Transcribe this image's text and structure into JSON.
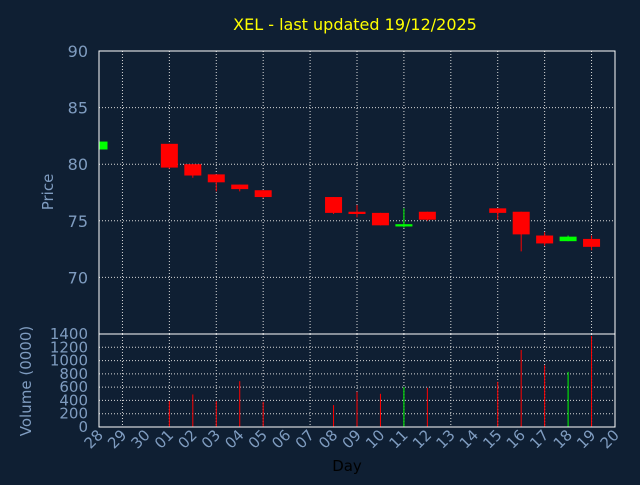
{
  "colors": {
    "background": "#0f1f33",
    "plot_bg": "#0f1f33",
    "frame": "#ffffff",
    "grid": "#d8d8d8",
    "title": "#ffff00",
    "axis_text": "#7f9cc0",
    "xlabel_text": "#000000",
    "up": "#00ff00",
    "down": "#ff0000"
  },
  "chart_data": [
    {
      "type": "candlestick",
      "title": "XEL - last updated 19/12/2025",
      "ylabel": "Price",
      "ylim": [
        65,
        90
      ],
      "yticks": [
        70,
        75,
        80,
        85,
        90
      ],
      "grid": true,
      "x_tick_labels": [
        "28",
        "29",
        "30",
        "01",
        "02",
        "03",
        "04",
        "05",
        "06",
        "07",
        "08",
        "09",
        "10",
        "11",
        "12",
        "13",
        "14",
        "15",
        "16",
        "17",
        "18",
        "19",
        "20"
      ],
      "candles": [
        {
          "day": "28",
          "open": 81.3,
          "close": 82.0,
          "high": 82.0,
          "low": 81.3
        },
        {
          "day": "01",
          "open": 81.8,
          "close": 79.7,
          "high": 81.8,
          "low": 79.6
        },
        {
          "day": "02",
          "open": 80.0,
          "close": 79.0,
          "high": 80.0,
          "low": 78.8
        },
        {
          "day": "03",
          "open": 79.1,
          "close": 78.4,
          "high": 79.1,
          "low": 77.6
        },
        {
          "day": "04",
          "open": 78.2,
          "close": 77.8,
          "high": 78.2,
          "low": 77.6
        },
        {
          "day": "05",
          "open": 77.7,
          "close": 77.1,
          "high": 77.7,
          "low": 77.0
        },
        {
          "day": "08",
          "open": 77.1,
          "close": 75.7,
          "high": 77.1,
          "low": 75.6
        },
        {
          "day": "09",
          "open": 75.8,
          "close": 75.6,
          "high": 76.4,
          "low": 75.3
        },
        {
          "day": "10",
          "open": 75.7,
          "close": 74.6,
          "high": 75.7,
          "low": 74.6
        },
        {
          "day": "11",
          "open": 74.5,
          "close": 74.7,
          "high": 76.1,
          "low": 74.4
        },
        {
          "day": "12",
          "open": 75.8,
          "close": 75.1,
          "high": 75.8,
          "low": 75.0
        },
        {
          "day": "15",
          "open": 76.1,
          "close": 75.7,
          "high": 76.1,
          "low": 75.1
        },
        {
          "day": "16",
          "open": 75.8,
          "close": 73.8,
          "high": 75.8,
          "low": 72.3
        },
        {
          "day": "17",
          "open": 73.7,
          "close": 73.0,
          "high": 74.0,
          "low": 72.8
        },
        {
          "day": "18",
          "open": 73.2,
          "close": 73.6,
          "high": 73.7,
          "low": 73.2
        },
        {
          "day": "19",
          "open": 73.4,
          "close": 72.7,
          "high": 73.7,
          "low": 72.4
        }
      ]
    },
    {
      "type": "bar",
      "ylabel": "Volume (0000)",
      "xlabel": "Day",
      "ylim": [
        0,
        1400
      ],
      "yticks": [
        0,
        200,
        400,
        600,
        800,
        1000,
        1200,
        1400
      ],
      "grid": true,
      "bars": [
        {
          "day": "01",
          "value": 390
        },
        {
          "day": "02",
          "value": 490
        },
        {
          "day": "03",
          "value": 390
        },
        {
          "day": "04",
          "value": 690
        },
        {
          "day": "05",
          "value": 380
        },
        {
          "day": "08",
          "value": 330
        },
        {
          "day": "09",
          "value": 530
        },
        {
          "day": "10",
          "value": 500
        },
        {
          "day": "11",
          "value": 600
        },
        {
          "day": "12",
          "value": 590
        },
        {
          "day": "15",
          "value": 680
        },
        {
          "day": "16",
          "value": 1160
        },
        {
          "day": "17",
          "value": 930
        },
        {
          "day": "18",
          "value": 830
        },
        {
          "day": "19",
          "value": 1370
        }
      ]
    }
  ]
}
